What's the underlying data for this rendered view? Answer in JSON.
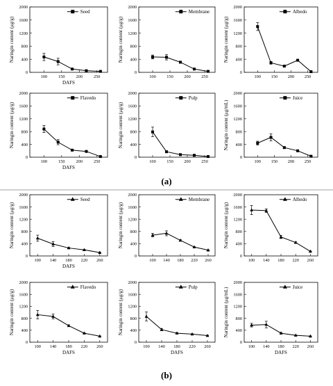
{
  "figure": {
    "panel_a_label": "(a)",
    "panel_b_label": "(b)"
  },
  "chart_data": [
    {
      "id": "a-seed",
      "group": "a",
      "type": "line",
      "marker": "square",
      "legend": "Seed",
      "xlabel": "DAFS",
      "ylabel": "Naringin content (μg/g)",
      "xlim": [
        60,
        280
      ],
      "ylim": [
        0,
        2000
      ],
      "xticks": [
        100,
        150,
        200,
        250
      ],
      "yticks": [
        0,
        400,
        800,
        1200,
        1600,
        2000
      ],
      "x": [
        100,
        140,
        180,
        220,
        260
      ],
      "y": [
        470,
        330,
        100,
        50,
        30
      ],
      "err": [
        110,
        100,
        20,
        10,
        10
      ]
    },
    {
      "id": "a-membrane",
      "group": "a",
      "type": "line",
      "marker": "square",
      "legend": "Membrane",
      "xlabel": "",
      "ylabel": "Naringin content (μg/g)",
      "xlim": [
        60,
        280
      ],
      "ylim": [
        0,
        2000
      ],
      "xticks": [
        100,
        150,
        200,
        250,
        300
      ],
      "yticks": [
        0,
        400,
        800,
        1200,
        1600,
        2000
      ],
      "x": [
        100,
        140,
        180,
        220,
        260
      ],
      "y": [
        470,
        460,
        310,
        100,
        30
      ],
      "err": [
        60,
        80,
        20,
        20,
        10
      ]
    },
    {
      "id": "a-albedo",
      "group": "a",
      "type": "line",
      "marker": "square",
      "legend": "Albedo",
      "xlabel": "",
      "ylabel": "Naringin content (μg/g)",
      "xlim": [
        60,
        280
      ],
      "ylim": [
        0,
        2000
      ],
      "xticks": [
        100,
        150,
        200,
        250,
        300
      ],
      "yticks": [
        0,
        400,
        800,
        1200,
        1600,
        2000
      ],
      "x": [
        100,
        140,
        180,
        220,
        260
      ],
      "y": [
        1400,
        290,
        190,
        370,
        20
      ],
      "err": [
        120,
        40,
        20,
        20,
        10
      ]
    },
    {
      "id": "a-flavedo",
      "group": "a",
      "type": "line",
      "marker": "square",
      "legend": "Flavedo",
      "xlabel": "DAFS",
      "ylabel": "Naringin content (μg/g)",
      "xlim": [
        60,
        280
      ],
      "ylim": [
        0,
        2000
      ],
      "xticks": [
        100,
        150,
        200,
        250
      ],
      "yticks": [
        0,
        400,
        800,
        1200,
        1600,
        2000
      ],
      "x": [
        100,
        140,
        180,
        220,
        260
      ],
      "y": [
        880,
        470,
        220,
        180,
        20
      ],
      "err": [
        110,
        80,
        20,
        20,
        10
      ]
    },
    {
      "id": "a-pulp",
      "group": "a",
      "type": "line",
      "marker": "square",
      "legend": "Pulp",
      "xlabel": "",
      "ylabel": "Naringin content (μg/g)",
      "xlim": [
        60,
        280
      ],
      "ylim": [
        0,
        2000
      ],
      "xticks": [
        100,
        150,
        200,
        250
      ],
      "yticks": [
        0,
        400,
        800,
        1200,
        1600,
        2000
      ],
      "x": [
        100,
        140,
        180,
        220,
        260
      ],
      "y": [
        790,
        170,
        80,
        60,
        20
      ],
      "err": [
        150,
        30,
        10,
        10,
        10
      ]
    },
    {
      "id": "a-juice",
      "group": "a",
      "type": "line",
      "marker": "square",
      "legend": "Juice",
      "xlabel": "",
      "ylabel": "Naringin content (μg/mL)",
      "xlim": [
        60,
        280
      ],
      "ylim": [
        0,
        2000
      ],
      "xticks": [
        100,
        150,
        200,
        250
      ],
      "yticks": [
        0,
        400,
        800,
        1200,
        1600,
        2000
      ],
      "x": [
        100,
        140,
        180,
        220,
        260
      ],
      "y": [
        440,
        620,
        300,
        200,
        30
      ],
      "err": [
        60,
        110,
        30,
        10,
        10
      ]
    },
    {
      "id": "b-seed",
      "group": "b",
      "type": "line",
      "marker": "triangle",
      "legend": "Seed",
      "xlabel": "DAFS",
      "ylabel": "Naringin content (μg/g)",
      "xlim": [
        80,
        280
      ],
      "ylim": [
        0,
        2000
      ],
      "xticks": [
        100,
        140,
        180,
        220,
        260
      ],
      "yticks": [
        0,
        400,
        800,
        1200,
        1600,
        2000
      ],
      "x": [
        100,
        140,
        180,
        220,
        260
      ],
      "y": [
        580,
        390,
        260,
        200,
        110
      ],
      "err": [
        100,
        80,
        20,
        10,
        10
      ]
    },
    {
      "id": "b-membrane",
      "group": "b",
      "type": "line",
      "marker": "triangle",
      "legend": "Membrane",
      "xlabel": "",
      "ylabel": "Naringin content (μg/g)",
      "xlim": [
        60,
        280
      ],
      "ylim": [
        0,
        2000
      ],
      "xticks": [
        100,
        140,
        180,
        220,
        260
      ],
      "yticks": [
        0,
        400,
        800,
        1200,
        1600,
        2000
      ],
      "x": [
        100,
        140,
        180,
        220,
        260
      ],
      "y": [
        680,
        740,
        510,
        290,
        190
      ],
      "err": [
        60,
        80,
        20,
        10,
        10
      ]
    },
    {
      "id": "b-albedo",
      "group": "b",
      "type": "line",
      "marker": "triangle",
      "legend": "Albedo",
      "xlabel": "",
      "ylabel": "Naringin content (μg/g)",
      "xlim": [
        80,
        280
      ],
      "ylim": [
        0,
        2000
      ],
      "xticks": [
        100,
        140,
        180,
        220,
        260
      ],
      "yticks": [
        0,
        400,
        800,
        1200,
        1600,
        2000
      ],
      "x": [
        100,
        140,
        180,
        220,
        260
      ],
      "y": [
        1500,
        1480,
        620,
        440,
        150
      ],
      "err": [
        150,
        60,
        50,
        20,
        10
      ]
    },
    {
      "id": "b-flavedo",
      "group": "b",
      "type": "line",
      "marker": "triangle",
      "legend": "Flavedo",
      "xlabel": "DAFS",
      "ylabel": "Naringin content (μg/g)",
      "xlim": [
        80,
        280
      ],
      "ylim": [
        0,
        2000
      ],
      "xticks": [
        100,
        140,
        180,
        220,
        260
      ],
      "yticks": [
        0,
        400,
        800,
        1200,
        1600,
        2000
      ],
      "x": [
        100,
        140,
        180,
        220,
        260
      ],
      "y": [
        920,
        860,
        550,
        300,
        200
      ],
      "err": [
        140,
        80,
        30,
        10,
        10
      ]
    },
    {
      "id": "b-pulp",
      "group": "b",
      "type": "line",
      "marker": "triangle",
      "legend": "Pulp",
      "xlabel": "DAFS",
      "ylabel": "Naringin content (μg/g)",
      "xlim": [
        80,
        280
      ],
      "ylim": [
        0,
        2000
      ],
      "xticks": [
        100,
        140,
        180,
        220,
        260
      ],
      "yticks": [
        0,
        400,
        800,
        1200,
        1600,
        2000
      ],
      "x": [
        100,
        140,
        180,
        220,
        260
      ],
      "y": [
        860,
        420,
        300,
        270,
        220
      ],
      "err": [
        150,
        40,
        20,
        10,
        10
      ]
    },
    {
      "id": "b-juice",
      "group": "b",
      "type": "line",
      "marker": "triangle",
      "legend": "Juice",
      "xlabel": "DAFS",
      "ylabel": "Naringin content (μg/mL)",
      "xlim": [
        80,
        280
      ],
      "ylim": [
        0,
        2000
      ],
      "xticks": [
        100,
        140,
        180,
        220,
        260
      ],
      "yticks": [
        0,
        400,
        800,
        1200,
        1600,
        2000
      ],
      "x": [
        100,
        140,
        180,
        220,
        260
      ],
      "y": [
        570,
        590,
        300,
        230,
        200
      ],
      "err": [
        60,
        110,
        30,
        10,
        10
      ]
    }
  ]
}
